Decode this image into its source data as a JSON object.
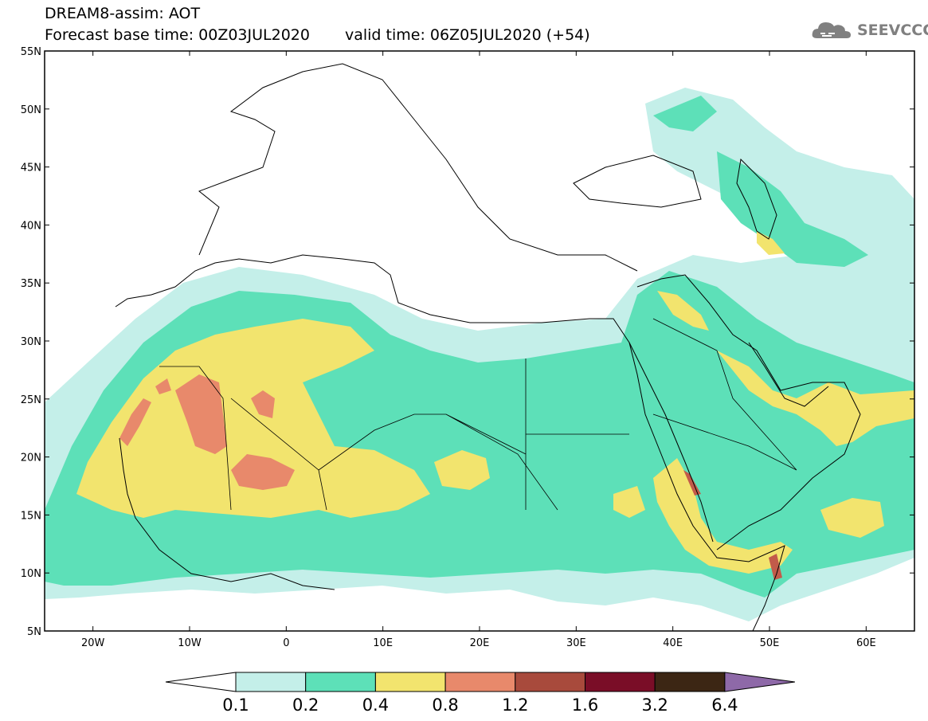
{
  "title": {
    "line1": "DREAM8-assim: AOT",
    "base_time": "Forecast base time: 00Z03JUL2020",
    "valid_time": "valid time: 06Z05JUL2020 (+54)"
  },
  "logo": {
    "text": "SEEVCCC",
    "icon": "cloud-icon"
  },
  "map": {
    "projection": "lat-lon",
    "lon_range": [
      -25,
      65
    ],
    "lat_range": [
      5,
      55
    ],
    "lat_labels": [
      "5N",
      "10N",
      "15N",
      "20N",
      "25N",
      "30N",
      "35N",
      "40N",
      "45N",
      "50N",
      "55N"
    ],
    "lon_labels": [
      "20W",
      "10W",
      "0",
      "10E",
      "20E",
      "30E",
      "40E",
      "50E",
      "60E"
    ],
    "lat_values": [
      5,
      10,
      15,
      20,
      25,
      30,
      35,
      40,
      45,
      50,
      55
    ],
    "lon_values": [
      -20,
      -10,
      0,
      10,
      20,
      30,
      40,
      50,
      60
    ]
  },
  "colorbar": {
    "labels": [
      "0.1",
      "0.2",
      "0.4",
      "0.8",
      "1.2",
      "1.6",
      "3.2",
      "6.4"
    ],
    "colors": [
      "#c4efe9",
      "#5de0b8",
      "#f2e46e",
      "#e8896b",
      "#a84a3c",
      "#7a0d27",
      "#3c2614",
      "#8e69a8"
    ]
  },
  "colors": {
    "level1": "#c4efe9",
    "level2": "#5de0b8",
    "level3": "#f2e46e",
    "level4": "#e8896b",
    "level5": "#c25b4a"
  }
}
